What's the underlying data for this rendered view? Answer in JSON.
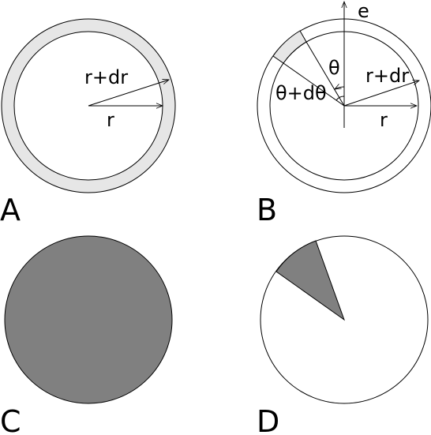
{
  "panels": {
    "A": {
      "label": "A",
      "outer_label": "r+dr",
      "inner_label": "r"
    },
    "B": {
      "label": "B",
      "axis_label": "e",
      "angle_label": "θ",
      "angle2_label": "θ+dθ",
      "outer_label": "r+dr",
      "inner_label": "r"
    },
    "C": {
      "label": "C"
    },
    "D": {
      "label": "D"
    }
  },
  "colors": {
    "ring_fill": "#e6e6e6",
    "disk_fill": "#808080",
    "stroke": "#000000"
  }
}
